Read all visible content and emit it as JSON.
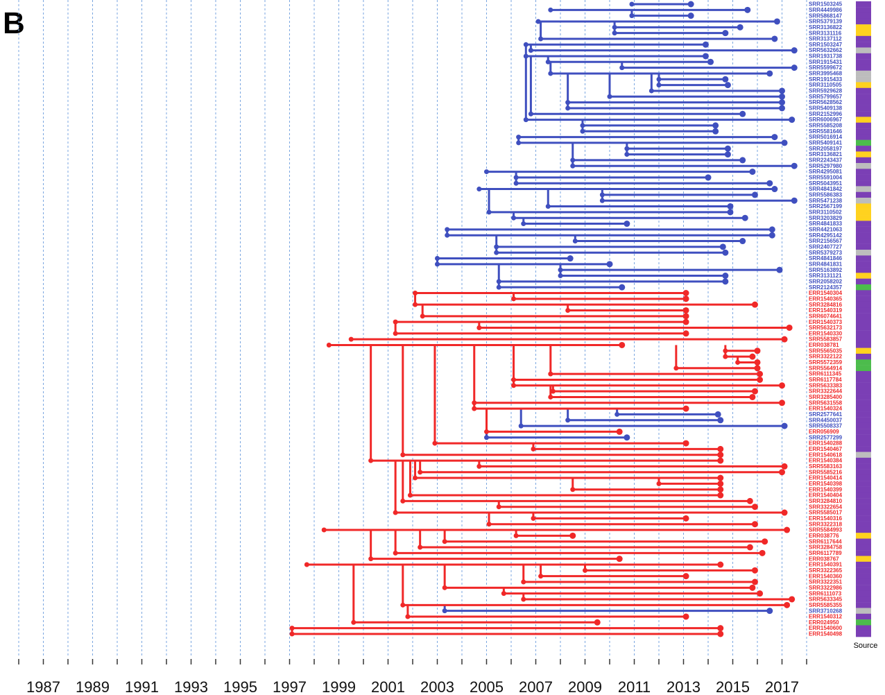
{
  "panel_label": "B",
  "source_label": "Source",
  "xlim": [
    1986,
    2018
  ],
  "xticks": [
    1987,
    1989,
    1991,
    1993,
    1995,
    1997,
    1999,
    2001,
    2003,
    2005,
    2007,
    2009,
    2011,
    2013,
    2015,
    2017
  ],
  "minor_ticks": [
    1986,
    1987,
    1988,
    1989,
    1990,
    1991,
    1992,
    1993,
    1994,
    1995,
    1996,
    1997,
    1998,
    1999,
    2000,
    2001,
    2002,
    2003,
    2004,
    2005,
    2006,
    2007,
    2008,
    2009,
    2010,
    2011,
    2012,
    2013,
    2014,
    2015,
    2016,
    2017,
    2018
  ],
  "tips": [
    {
      "label": "SRR1503245",
      "date": 2013.3,
      "parent": 2010.9,
      "color": "#3f4fbf",
      "source": "#7b3fb5"
    },
    {
      "label": "SRR4449986",
      "date": 2015.6,
      "parent": 2007.6,
      "color": "#3f4fbf",
      "source": "#7b3fb5"
    },
    {
      "label": "SRR5868147",
      "date": 2013.3,
      "parent": 2010.9,
      "color": "#3f4fbf",
      "source": "#7b3fb5"
    },
    {
      "label": "SRR5379139",
      "date": 2016.8,
      "parent": 2007.1,
      "color": "#3f4fbf",
      "source": "#7b3fb5"
    },
    {
      "label": "SRR3136822",
      "date": 2015.3,
      "parent": 2010.2,
      "color": "#3f4fbf",
      "source": "#ffd21f"
    },
    {
      "label": "SRR3131116",
      "date": 2014.7,
      "parent": 2010.2,
      "color": "#3f4fbf",
      "source": "#ffd21f"
    },
    {
      "label": "SRR3137112",
      "date": 2016.7,
      "parent": 2007.2,
      "color": "#3f4fbf",
      "source": "#7b3fb5"
    },
    {
      "label": "SRR1503247",
      "date": 2013.9,
      "parent": 2006.6,
      "color": "#3f4fbf",
      "source": "#7b3fb5"
    },
    {
      "label": "SRR5632662",
      "date": 2017.5,
      "parent": 2006.8,
      "color": "#3f4fbf",
      "source": "#bdbdbd"
    },
    {
      "label": "SRR1931738",
      "date": 2013.9,
      "parent": 2006.6,
      "color": "#3f4fbf",
      "source": "#7b3fb5"
    },
    {
      "label": "SRR1915431",
      "date": 2014.1,
      "parent": 2007.5,
      "color": "#3f4fbf",
      "source": "#7b3fb5"
    },
    {
      "label": "SRR5599672",
      "date": 2017.5,
      "parent": 2010.5,
      "color": "#3f4fbf",
      "source": "#7b3fb5"
    },
    {
      "label": "SRR3995468",
      "date": 2016.5,
      "parent": 2007.6,
      "color": "#3f4fbf",
      "source": "#bdbdbd"
    },
    {
      "label": "SRR1915433",
      "date": 2014.7,
      "parent": 2012.0,
      "color": "#3f4fbf",
      "source": "#bdbdbd"
    },
    {
      "label": "SRR3110505",
      "date": 2014.8,
      "parent": 2012.0,
      "color": "#3f4fbf",
      "source": "#ffd21f"
    },
    {
      "label": "SRR5929628",
      "date": 2017.0,
      "parent": 2011.7,
      "color": "#3f4fbf",
      "source": "#7b3fb5"
    },
    {
      "label": "SRR5799657",
      "date": 2017.0,
      "parent": 2010.0,
      "color": "#3f4fbf",
      "source": "#7b3fb5"
    },
    {
      "label": "SRR5628562",
      "date": 2017.0,
      "parent": 2008.3,
      "color": "#3f4fbf",
      "source": "#7b3fb5"
    },
    {
      "label": "SRR5409138",
      "date": 2017.0,
      "parent": 2008.3,
      "color": "#3f4fbf",
      "source": "#7b3fb5"
    },
    {
      "label": "SRR2152996",
      "date": 2015.4,
      "parent": 2006.8,
      "color": "#3f4fbf",
      "source": "#7b3fb5"
    },
    {
      "label": "SRR6006967",
      "date": 2017.4,
      "parent": 2006.6,
      "color": "#3f4fbf",
      "source": "#ffd21f"
    },
    {
      "label": "SRR5585208",
      "date": 2014.3,
      "parent": 2008.9,
      "color": "#3f4fbf",
      "source": "#7b3fb5"
    },
    {
      "label": "SRR5581646",
      "date": 2014.3,
      "parent": 2008.9,
      "color": "#3f4fbf",
      "source": "#7b3fb5"
    },
    {
      "label": "SRR5016914",
      "date": 2016.7,
      "parent": 2006.3,
      "color": "#3f4fbf",
      "source": "#7b3fb5"
    },
    {
      "label": "SRR5409141",
      "date": 2017.1,
      "parent": 2006.3,
      "color": "#3f4fbf",
      "source": "#4cbc4c"
    },
    {
      "label": "SRR2058197",
      "date": 2014.8,
      "parent": 2010.7,
      "color": "#3f4fbf",
      "source": "#7b3fb5"
    },
    {
      "label": "SRR3136821",
      "date": 2014.8,
      "parent": 2010.7,
      "color": "#3f4fbf",
      "source": "#ffd21f"
    },
    {
      "label": "SRR2243437",
      "date": 2015.4,
      "parent": 2008.5,
      "color": "#3f4fbf",
      "source": "#7b3fb5"
    },
    {
      "label": "SRR5297980",
      "date": 2017.5,
      "parent": 2008.5,
      "color": "#3f4fbf",
      "source": "#bdbdbd"
    },
    {
      "label": "SRR4295081",
      "date": 2015.8,
      "parent": 2005.0,
      "color": "#3f4fbf",
      "source": "#7b3fb5"
    },
    {
      "label": "SRR5591004",
      "date": 2014.0,
      "parent": 2006.2,
      "color": "#3f4fbf",
      "source": "#7b3fb5"
    },
    {
      "label": "SRR5043951",
      "date": 2016.5,
      "parent": 2006.2,
      "color": "#3f4fbf",
      "source": "#7b3fb5"
    },
    {
      "label": "SRR4841842",
      "date": 2016.7,
      "parent": 2004.7,
      "color": "#3f4fbf",
      "source": "#bdbdbd"
    },
    {
      "label": "SRR5586383",
      "date": 2015.9,
      "parent": 2009.7,
      "color": "#3f4fbf",
      "source": "#7b3fb5"
    },
    {
      "label": "SRR5471238",
      "date": 2017.5,
      "parent": 2009.7,
      "color": "#3f4fbf",
      "source": "#bdbdbd"
    },
    {
      "label": "SRR2567199",
      "date": 2014.9,
      "parent": 2007.5,
      "color": "#3f4fbf",
      "source": "#ffd21f"
    },
    {
      "label": "SRR3110502",
      "date": 2014.9,
      "parent": 2005.1,
      "color": "#3f4fbf",
      "source": "#ffd21f"
    },
    {
      "label": "SRR3203829",
      "date": 2015.5,
      "parent": 2006.1,
      "color": "#3f4fbf",
      "source": "#ffd21f"
    },
    {
      "label": "SRR4841833",
      "date": 2010.7,
      "parent": 2006.5,
      "color": "#3f4fbf",
      "source": "#7b3fb5"
    },
    {
      "label": "SRR4421063",
      "date": 2016.6,
      "parent": 2003.4,
      "color": "#3f4fbf",
      "source": "#7b3fb5"
    },
    {
      "label": "SRR4295142",
      "date": 2016.6,
      "parent": 2003.4,
      "color": "#3f4fbf",
      "source": "#7b3fb5"
    },
    {
      "label": "SRR2156567",
      "date": 2015.4,
      "parent": 2008.6,
      "color": "#3f4fbf",
      "source": "#7b3fb5"
    },
    {
      "label": "SRR2407727",
      "date": 2014.6,
      "parent": 2005.4,
      "color": "#3f4fbf",
      "source": "#7b3fb5"
    },
    {
      "label": "SRR5379273",
      "date": 2014.7,
      "parent": 2005.4,
      "color": "#3f4fbf",
      "source": "#bdbdbd"
    },
    {
      "label": "SRR4841846",
      "date": 2008.4,
      "parent": 2003.0,
      "color": "#3f4fbf",
      "source": "#7b3fb5"
    },
    {
      "label": "SRR4841831",
      "date": 2010.0,
      "parent": 2003.0,
      "color": "#3f4fbf",
      "source": "#7b3fb5"
    },
    {
      "label": "SRR5163892",
      "date": 2016.9,
      "parent": 2008.0,
      "color": "#3f4fbf",
      "source": "#7b3fb5"
    },
    {
      "label": "SRR3131121",
      "date": 2014.7,
      "parent": 2008.0,
      "color": "#3f4fbf",
      "source": "#ffd21f"
    },
    {
      "label": "SRR2058202",
      "date": 2014.7,
      "parent": 2005.5,
      "color": "#3f4fbf",
      "source": "#7b3fb5"
    },
    {
      "label": "SRR2124357",
      "date": 2010.5,
      "parent": 2005.5,
      "color": "#3f4fbf",
      "source": "#4cbc4c"
    },
    {
      "label": "ERR1540304",
      "date": 2013.1,
      "parent": 2002.1,
      "color": "#f02828",
      "source": "#7b3fb5"
    },
    {
      "label": "ERR1540365",
      "date": 2013.1,
      "parent": 2006.1,
      "color": "#f02828",
      "source": "#7b3fb5"
    },
    {
      "label": "SRR3284816",
      "date": 2015.9,
      "parent": 2002.1,
      "color": "#f02828",
      "source": "#7b3fb5"
    },
    {
      "label": "ERR1540319",
      "date": 2013.1,
      "parent": 2008.3,
      "color": "#f02828",
      "source": "#7b3fb5"
    },
    {
      "label": "SRR6074641",
      "date": 2013.1,
      "parent": 2002.4,
      "color": "#f02828",
      "source": "#7b3fb5"
    },
    {
      "label": "ERR1540373",
      "date": 2013.1,
      "parent": 2001.3,
      "color": "#f02828",
      "source": "#7b3fb5"
    },
    {
      "label": "SRR5632173",
      "date": 2017.3,
      "parent": 2004.7,
      "color": "#f02828",
      "source": "#7b3fb5"
    },
    {
      "label": "ERR1540330",
      "date": 2013.1,
      "parent": 2001.3,
      "color": "#f02828",
      "source": "#7b3fb5"
    },
    {
      "label": "SRR5583857",
      "date": 2017.1,
      "parent": 1999.5,
      "color": "#f02828",
      "source": "#7b3fb5"
    },
    {
      "label": "ERR038781",
      "date": 2010.5,
      "parent": 1998.6,
      "color": "#f02828",
      "source": "#7b3fb5"
    },
    {
      "label": "SRR5565035",
      "date": 2016.0,
      "parent": 2014.7,
      "color": "#f02828",
      "source": "#ffd21f"
    },
    {
      "label": "SRR3322122",
      "date": 2015.8,
      "parent": 2014.7,
      "color": "#f02828",
      "source": "#7b3fb5"
    },
    {
      "label": "SRR5572359",
      "date": 2016.0,
      "parent": 2015.2,
      "color": "#f02828",
      "source": "#4cbc4c"
    },
    {
      "label": "SRR5564914",
      "date": 2016.0,
      "parent": 2012.7,
      "color": "#f02828",
      "source": "#4cbc4c"
    },
    {
      "label": "SRR6111345",
      "date": 2016.1,
      "parent": 2007.6,
      "color": "#f02828",
      "source": "#7b3fb5"
    },
    {
      "label": "SRR6117784",
      "date": 2016.1,
      "parent": 2006.1,
      "color": "#f02828",
      "source": "#7b3fb5"
    },
    {
      "label": "SRR5633383",
      "date": 2017.0,
      "parent": 2006.1,
      "color": "#f02828",
      "source": "#7b3fb5"
    },
    {
      "label": "SRR3322644",
      "date": 2015.9,
      "parent": 2007.7,
      "color": "#f02828",
      "source": "#7b3fb5"
    },
    {
      "label": "SRR3285400",
      "date": 2015.8,
      "parent": 2007.6,
      "color": "#f02828",
      "source": "#7b3fb5"
    },
    {
      "label": "SRR5631558",
      "date": 2017.0,
      "parent": 2004.5,
      "color": "#f02828",
      "source": "#7b3fb5"
    },
    {
      "label": "ERR1540324",
      "date": 2013.1,
      "parent": 2004.5,
      "color": "#f02828",
      "source": "#7b3fb5"
    },
    {
      "label": "SRR2577641",
      "date": 2014.4,
      "parent": 2010.3,
      "color": "#3f4fbf",
      "source": "#7b3fb5"
    },
    {
      "label": "SRR4450037",
      "date": 2014.5,
      "parent": 2008.3,
      "color": "#3f4fbf",
      "source": "#7b3fb5"
    },
    {
      "label": "SRR5508337",
      "date": 2017.1,
      "parent": 2006.4,
      "color": "#3f4fbf",
      "source": "#7b3fb5"
    },
    {
      "label": "ERR056909",
      "date": 2010.4,
      "parent": 2005.0,
      "color": "#f02828",
      "source": "#7b3fb5"
    },
    {
      "label": "SRR2577299",
      "date": 2010.7,
      "parent": 2005.0,
      "color": "#3f4fbf",
      "source": "#7b3fb5"
    },
    {
      "label": "ERR1540288",
      "date": 2013.1,
      "parent": 2002.9,
      "color": "#f02828",
      "source": "#7b3fb5"
    },
    {
      "label": "ERR1540467",
      "date": 2014.5,
      "parent": 2006.9,
      "color": "#f02828",
      "source": "#7b3fb5"
    },
    {
      "label": "ERR1540618",
      "date": 2014.5,
      "parent": 2001.6,
      "color": "#f02828",
      "source": "#bdbdbd"
    },
    {
      "label": "ERR1540384",
      "date": 2014.5,
      "parent": 2000.3,
      "color": "#f02828",
      "source": "#7b3fb5"
    },
    {
      "label": "SRR5583163",
      "date": 2017.1,
      "parent": 2004.7,
      "color": "#f02828",
      "source": "#7b3fb5"
    },
    {
      "label": "SRR5585216",
      "date": 2017.0,
      "parent": 2002.3,
      "color": "#f02828",
      "source": "#7b3fb5"
    },
    {
      "label": "ERR1540414",
      "date": 2014.5,
      "parent": 2002.1,
      "color": "#f02828",
      "source": "#7b3fb5"
    },
    {
      "label": "ERR1540398",
      "date": 2014.5,
      "parent": 2012.0,
      "color": "#f02828",
      "source": "#7b3fb5"
    },
    {
      "label": "ERR1540399",
      "date": 2014.5,
      "parent": 2008.5,
      "color": "#f02828",
      "source": "#7b3fb5"
    },
    {
      "label": "ERR1540404",
      "date": 2014.5,
      "parent": 2001.9,
      "color": "#f02828",
      "source": "#7b3fb5"
    },
    {
      "label": "SRR3284810",
      "date": 2015.7,
      "parent": 2001.6,
      "color": "#f02828",
      "source": "#7b3fb5"
    },
    {
      "label": "SRR3322654",
      "date": 2015.9,
      "parent": 2005.5,
      "color": "#f02828",
      "source": "#7b3fb5"
    },
    {
      "label": "SRR5585017",
      "date": 2017.1,
      "parent": 2001.3,
      "color": "#f02828",
      "source": "#7b3fb5"
    },
    {
      "label": "ERR1540316",
      "date": 2013.1,
      "parent": 2006.9,
      "color": "#f02828",
      "source": "#7b3fb5"
    },
    {
      "label": "SRR3322318",
      "date": 2015.9,
      "parent": 2005.1,
      "color": "#f02828",
      "source": "#7b3fb5"
    },
    {
      "label": "SRR5584993",
      "date": 2017.2,
      "parent": 1998.4,
      "color": "#f02828",
      "source": "#7b3fb5"
    },
    {
      "label": "ERR038776",
      "date": 2008.5,
      "parent": 2006.2,
      "color": "#f02828",
      "source": "#ffd21f"
    },
    {
      "label": "SRR6117644",
      "date": 2016.3,
      "parent": 2003.3,
      "color": "#f02828",
      "source": "#7b3fb5"
    },
    {
      "label": "SRR3284758",
      "date": 2015.7,
      "parent": 2002.3,
      "color": "#f02828",
      "source": "#7b3fb5"
    },
    {
      "label": "SRR6117789",
      "date": 2016.2,
      "parent": 2001.3,
      "color": "#f02828",
      "source": "#7b3fb5"
    },
    {
      "label": "ERR038767",
      "date": 2010.4,
      "parent": 2000.3,
      "color": "#f02828",
      "source": "#ffd21f"
    },
    {
      "label": "ERR1540391",
      "date": 2014.5,
      "parent": 1997.7,
      "color": "#f02828",
      "source": "#7b3fb5"
    },
    {
      "label": "SRR3322365",
      "date": 2015.9,
      "parent": 2009.0,
      "color": "#f02828",
      "source": "#7b3fb5"
    },
    {
      "label": "ERR1540360",
      "date": 2013.1,
      "parent": 2007.2,
      "color": "#f02828",
      "source": "#7b3fb5"
    },
    {
      "label": "SRR3322351",
      "date": 2015.9,
      "parent": 2006.5,
      "color": "#f02828",
      "source": "#7b3fb5"
    },
    {
      "label": "SRR3322986",
      "date": 2015.8,
      "parent": 2003.3,
      "color": "#f02828",
      "source": "#7b3fb5"
    },
    {
      "label": "SRR6111073",
      "date": 2016.1,
      "parent": 2005.7,
      "color": "#f02828",
      "source": "#7b3fb5"
    },
    {
      "label": "SRR5633345",
      "date": 2017.4,
      "parent": 2006.5,
      "color": "#f02828",
      "source": "#7b3fb5"
    },
    {
      "label": "SRR5585355",
      "date": 2017.2,
      "parent": 2001.6,
      "color": "#f02828",
      "source": "#7b3fb5"
    },
    {
      "label": "SRR3710268",
      "date": 2016.5,
      "parent": 2003.3,
      "color": "#3f4fbf",
      "source": "#bdbdbd"
    },
    {
      "label": "ERR1540312",
      "date": 2013.1,
      "parent": 2001.8,
      "color": "#f02828",
      "source": "#7b3fb5"
    },
    {
      "label": "ERR024950",
      "date": 2009.5,
      "parent": 1999.6,
      "color": "#f02828",
      "source": "#4cbc4c"
    },
    {
      "label": "ERR1540600",
      "date": 2014.5,
      "parent": 1997.1,
      "color": "#f02828",
      "source": "#7b3fb5"
    },
    {
      "label": "ERR1540498",
      "date": 2014.5,
      "parent": 1997.1,
      "color": "#f02828",
      "source": "#7b3fb5"
    }
  ]
}
